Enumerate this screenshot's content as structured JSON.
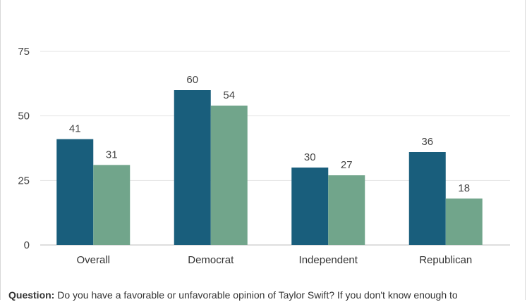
{
  "chart_data": {
    "type": "bar",
    "title": "",
    "xlabel": "",
    "ylabel": "",
    "ylim": [
      0,
      75
    ],
    "yticks": [
      0,
      25,
      50,
      75
    ],
    "grid": true,
    "categories": [
      "Overall",
      "Democrat",
      "Independent",
      "Republican"
    ],
    "series": [
      {
        "values": [
          41,
          60,
          30,
          36
        ],
        "color": "#195e7c"
      },
      {
        "values": [
          31,
          54,
          27,
          18
        ],
        "color": "#71a58b"
      }
    ]
  },
  "footnote": {
    "label": "Question:",
    "text": " Do you have a favorable or unfavorable opinion of Taylor Swift? If you don't know enough to"
  }
}
